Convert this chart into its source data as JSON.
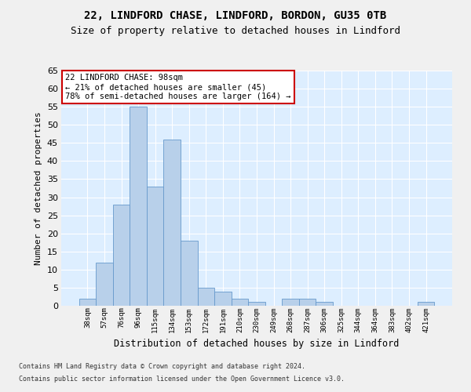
{
  "title1": "22, LINDFORD CHASE, LINDFORD, BORDON, GU35 0TB",
  "title2": "Size of property relative to detached houses in Lindford",
  "xlabel": "Distribution of detached houses by size in Lindford",
  "ylabel": "Number of detached properties",
  "categories": [
    "38sqm",
    "57sqm",
    "76sqm",
    "96sqm",
    "115sqm",
    "134sqm",
    "153sqm",
    "172sqm",
    "191sqm",
    "210sqm",
    "230sqm",
    "249sqm",
    "268sqm",
    "287sqm",
    "306sqm",
    "325sqm",
    "344sqm",
    "364sqm",
    "383sqm",
    "402sqm",
    "421sqm"
  ],
  "values": [
    2,
    12,
    28,
    55,
    33,
    46,
    18,
    5,
    4,
    2,
    1,
    0,
    2,
    2,
    1,
    0,
    0,
    0,
    0,
    0,
    1
  ],
  "bar_color": "#b8d0ea",
  "bar_edge_color": "#6699cc",
  "background_color": "#ddeeff",
  "grid_color": "#ffffff",
  "annotation_line1": "22 LINDFORD CHASE: 98sqm",
  "annotation_line2": "← 21% of detached houses are smaller (45)",
  "annotation_line3": "78% of semi-detached houses are larger (164) →",
  "annotation_box_color": "#ffffff",
  "annotation_box_edge": "#cc0000",
  "ylim": [
    0,
    65
  ],
  "yticks": [
    0,
    5,
    10,
    15,
    20,
    25,
    30,
    35,
    40,
    45,
    50,
    55,
    60,
    65
  ],
  "fig_bg": "#f0f0f0",
  "footer1": "Contains HM Land Registry data © Crown copyright and database right 2024.",
  "footer2": "Contains public sector information licensed under the Open Government Licence v3.0.",
  "title1_fontsize": 10,
  "title2_fontsize": 9,
  "xlabel_fontsize": 8.5,
  "ylabel_fontsize": 8,
  "xtick_fontsize": 6.5,
  "ytick_fontsize": 8,
  "ann_fontsize": 7.5,
  "footer_fontsize": 6
}
